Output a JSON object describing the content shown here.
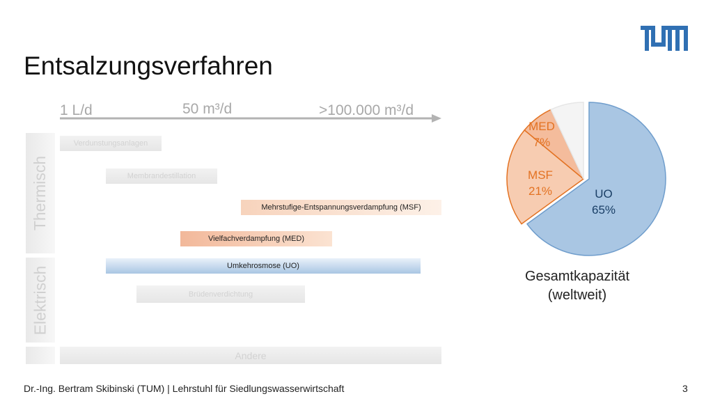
{
  "slide": {
    "title": "Entsalzungsverfahren",
    "scale": {
      "low": "1 L/d",
      "mid": "50 m³/d",
      "high": ">100.000 m³/d"
    },
    "categories": {
      "thermal": "Thermisch",
      "electric": "Elektrisch"
    },
    "processes": {
      "verdunstung": "Verdunstungsanlagen",
      "membrandest": "Membrandestillation",
      "msf": "Mehrstufige-Entspannungsverdampfung (MSF)",
      "med": "Vielfachverdampfung (MED)",
      "uo": "Umkehrosmose (UO)",
      "brueden": "Brüdenverdichtung",
      "andere": "Andere"
    },
    "caption_line1": "Gesamtkapazität",
    "caption_line2": "(weltweit)",
    "footer": "Dr.-Ing. Bertram Skibinski (TUM) | Lehrstuhl für Siedlungswasserwirtschaft",
    "page_number": "3"
  },
  "colors": {
    "tum_blue": "#3070b3",
    "thermal_orange": "#e37222",
    "uo_blue": "#a9c6e3"
  },
  "chart_data": {
    "type": "pie",
    "slices": [
      {
        "label": "UO",
        "pct_text": "65%",
        "value": 65,
        "color": "#a9c6e3",
        "text_color": "#1a3f66"
      },
      {
        "label": "MSF",
        "pct_text": "21%",
        "value": 21,
        "color": "#f7ccb1",
        "text_color": "#e37222"
      },
      {
        "label": "MED",
        "pct_text": "7%",
        "value": 7,
        "color": "#f4bc9c",
        "text_color": "#e37222"
      }
    ],
    "other_value": 7
  }
}
